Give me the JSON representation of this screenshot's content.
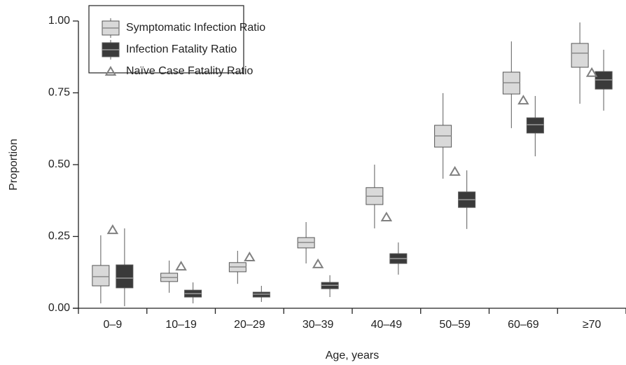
{
  "chart_data": {
    "type": "box",
    "x_label": "Age, years",
    "y_label": "Proportion",
    "categories": [
      "0–9",
      "10–19",
      "20–29",
      "30–39",
      "40–49",
      "50–59",
      "60–69",
      "≥70"
    ],
    "ylim": [
      0,
      1
    ],
    "yticks": [
      {
        "value": 0,
        "label": "0.00"
      },
      {
        "value": 0.25,
        "label": "0.25"
      },
      {
        "value": 0.5,
        "label": "0.50"
      },
      {
        "value": 0.75,
        "label": "0.75"
      },
      {
        "value": 1,
        "label": "1.00"
      }
    ],
    "legend": "top-left",
    "series": [
      {
        "name": "Symptomatic Infection Ratio",
        "color": "#d9d9d9",
        "median_color": "#8a8a8a",
        "min": [
          0.017,
          0.054,
          0.085,
          0.156,
          0.278,
          0.451,
          0.627,
          0.712
        ],
        "q1": [
          0.078,
          0.093,
          0.127,
          0.21,
          0.361,
          0.561,
          0.746,
          0.839
        ],
        "median": [
          0.11,
          0.107,
          0.144,
          0.229,
          0.39,
          0.6,
          0.785,
          0.888
        ],
        "q3": [
          0.149,
          0.122,
          0.159,
          0.246,
          0.42,
          0.637,
          0.822,
          0.922
        ],
        "max": [
          0.254,
          0.166,
          0.2,
          0.3,
          0.5,
          0.749,
          0.929,
          0.995
        ]
      },
      {
        "name": "Infection Fatality Ratio",
        "color": "#3a3a3a",
        "median_color": "#9a9a9a",
        "min": [
          0.007,
          0.017,
          0.022,
          0.039,
          0.117,
          0.276,
          0.529,
          0.688
        ],
        "q1": [
          0.071,
          0.039,
          0.039,
          0.068,
          0.156,
          0.351,
          0.61,
          0.763
        ],
        "median": [
          0.105,
          0.051,
          0.049,
          0.08,
          0.173,
          0.378,
          0.639,
          0.795
        ],
        "q3": [
          0.151,
          0.063,
          0.056,
          0.09,
          0.19,
          0.405,
          0.663,
          0.824
        ],
        "max": [
          0.278,
          0.09,
          0.078,
          0.115,
          0.229,
          0.48,
          0.739,
          0.9
        ]
      },
      {
        "name": "Naïve Case Fatality Ratio",
        "color": "#808080",
        "marker": "triangle",
        "values": [
          0.273,
          0.146,
          0.178,
          0.154,
          0.317,
          0.476,
          0.724,
          0.82
        ]
      }
    ]
  }
}
